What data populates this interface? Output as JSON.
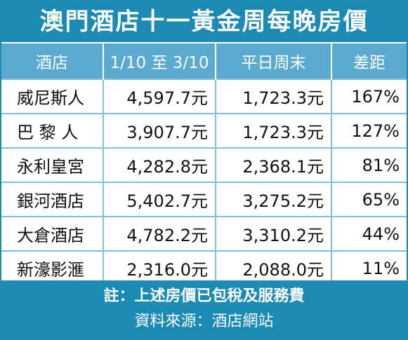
{
  "header": {
    "title": "澳門酒店十一黃金周每晚房價"
  },
  "table": {
    "columns": [
      "酒店",
      "1/10 至 3/10",
      "平日周末",
      "差距"
    ],
    "rows": [
      [
        "威尼斯人",
        "4,597.7元",
        "1,723.3元",
        "167%"
      ],
      [
        "巴 黎 人",
        "3,907.7元",
        "1,723.3元",
        "127%"
      ],
      [
        "永利皇宮",
        "4,282.8元",
        "2,368.1元",
        "81%"
      ],
      [
        "銀河酒店",
        "5,402.7元",
        "3,275.2元",
        "65%"
      ],
      [
        "大倉酒店",
        "4,782.2元",
        "3,310.2元",
        "44%"
      ],
      [
        "新濠影滙",
        "2,316.0元",
        "2,088.0元",
        "11%"
      ]
    ]
  },
  "footer": {
    "note": "註：上述房價已包稅及服務費",
    "source": "資料來源：酒店網站"
  }
}
